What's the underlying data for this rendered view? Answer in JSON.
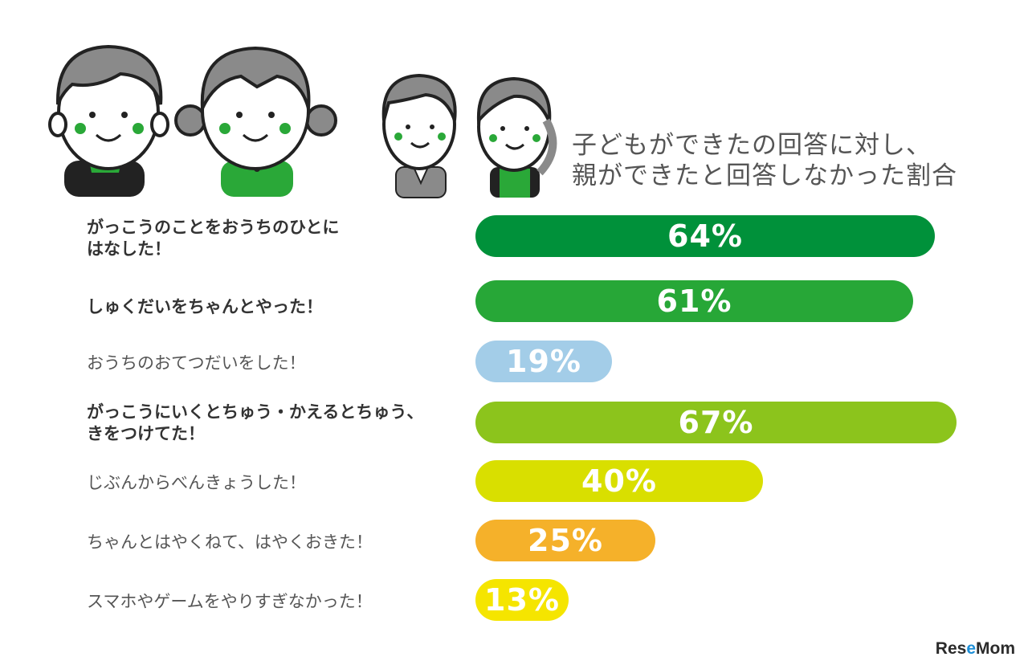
{
  "chart_data": {
    "type": "bar",
    "orientation": "horizontal",
    "title_lines": [
      "子どもができたの回答に対し、",
      "親ができたと回答しなかった割合"
    ],
    "categories": [
      "がっこうのことをおうちのひとに\nはなした！",
      "しゅくだいをちゃんとやった！",
      "おうちのおてつだいをした！",
      "がっこうにいくとちゅう・かえるとちゅう、\nきをつけてた！",
      "じぶんからべんきょうした！",
      "ちゃんとはやくねて、はやくおきた！",
      "スマホやゲームをやりすぎなかった！"
    ],
    "category_bold": [
      true,
      true,
      false,
      true,
      false,
      false,
      false
    ],
    "values": [
      64,
      61,
      19,
      67,
      40,
      25,
      13
    ],
    "value_labels": [
      "64%",
      "61%",
      "19%",
      "67%",
      "40%",
      "25%",
      "13%"
    ],
    "bar_colors": [
      "#00913a",
      "#27a737",
      "#a3cde8",
      "#8cc41c",
      "#d9df00",
      "#f5b12a",
      "#f5e500"
    ],
    "xlim": [
      0,
      100
    ],
    "grid": false
  },
  "logo": {
    "text_before": "Res",
    "text_e": "e",
    "text_after": "Mom"
  },
  "colors": {
    "title": "#555555",
    "label": "#333333"
  }
}
